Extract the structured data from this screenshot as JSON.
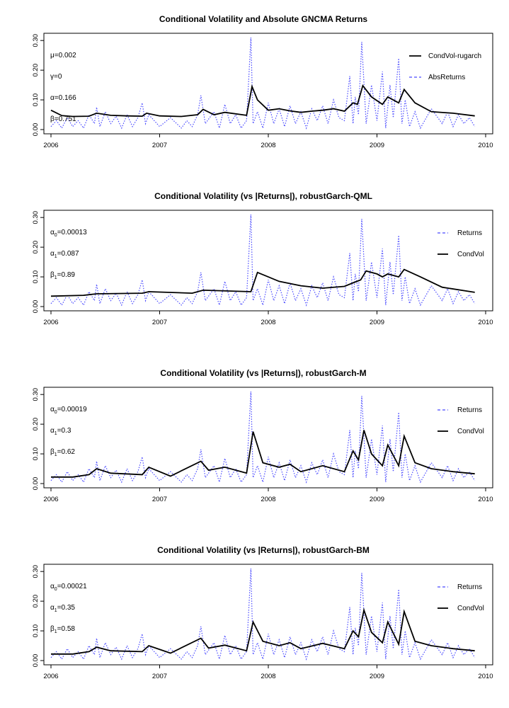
{
  "colors": {
    "returns": "#4a4aff",
    "condvol": "#000000",
    "axis": "#000000"
  },
  "chart_data": [
    {
      "type": "line",
      "title": "Conditional Volatility and Absolute GNCMA Returns",
      "xlabel": "",
      "ylabel": "",
      "xlim": [
        2006,
        2010
      ],
      "xticks": [
        2006,
        2007,
        2008,
        2009,
        2010
      ],
      "ylim": [
        0,
        0.31
      ],
      "yticks": [
        "0.00",
        "0.10",
        "0.20",
        "0.30"
      ],
      "ytick_values": [
        0.0,
        0.1,
        0.2,
        0.3
      ],
      "annotations": [
        "μ=0.002",
        "γ=0",
        "α=0.166",
        "β=0.751"
      ],
      "legend_position": "top-right",
      "legend": [
        {
          "label": "CondVol-rugarch",
          "style": "solid",
          "series": "condvol"
        },
        {
          "label": "AbsReturns",
          "style": "dashed",
          "series": "returns"
        }
      ],
      "series": [
        {
          "key": "condvol",
          "name": "CondVol-rugarch",
          "style": "solid",
          "x": [
            2006.0,
            2006.1,
            2006.2,
            2006.35,
            2006.42,
            2006.55,
            2006.7,
            2006.84,
            2006.88,
            2007.0,
            2007.2,
            2007.35,
            2007.4,
            2007.5,
            2007.6,
            2007.8,
            2007.85,
            2007.9,
            2008.0,
            2008.1,
            2008.2,
            2008.3,
            2008.4,
            2008.5,
            2008.6,
            2008.7,
            2008.78,
            2008.82,
            2008.87,
            2008.95,
            2009.05,
            2009.1,
            2009.2,
            2009.25,
            2009.35,
            2009.5,
            2009.7,
            2009.9
          ],
          "y": [
            0.065,
            0.047,
            0.044,
            0.045,
            0.055,
            0.048,
            0.046,
            0.045,
            0.055,
            0.046,
            0.044,
            0.05,
            0.068,
            0.05,
            0.058,
            0.048,
            0.145,
            0.1,
            0.065,
            0.07,
            0.063,
            0.058,
            0.062,
            0.065,
            0.07,
            0.062,
            0.09,
            0.085,
            0.148,
            0.11,
            0.085,
            0.11,
            0.09,
            0.135,
            0.09,
            0.06,
            0.055,
            0.046
          ]
        },
        {
          "key": "returns",
          "name": "AbsReturns",
          "style": "dotted",
          "x": [
            2006.0,
            2006.05,
            2006.1,
            2006.15,
            2006.2,
            2006.25,
            2006.3,
            2006.35,
            2006.4,
            2006.42,
            2006.45,
            2006.5,
            2006.55,
            2006.6,
            2006.65,
            2006.7,
            2006.75,
            2006.8,
            2006.84,
            2006.87,
            2006.9,
            2007.0,
            2007.1,
            2007.2,
            2007.25,
            2007.3,
            2007.35,
            2007.38,
            2007.42,
            2007.5,
            2007.55,
            2007.6,
            2007.65,
            2007.7,
            2007.75,
            2007.8,
            2007.84,
            2007.86,
            2007.9,
            2007.95,
            2008.0,
            2008.05,
            2008.1,
            2008.15,
            2008.2,
            2008.25,
            2008.3,
            2008.35,
            2008.4,
            2008.45,
            2008.5,
            2008.55,
            2008.6,
            2008.65,
            2008.7,
            2008.75,
            2008.78,
            2008.8,
            2008.83,
            2008.86,
            2008.9,
            2008.95,
            2009.0,
            2009.05,
            2009.08,
            2009.12,
            2009.15,
            2009.2,
            2009.23,
            2009.26,
            2009.3,
            2009.35,
            2009.4,
            2009.5,
            2009.6,
            2009.65,
            2009.7,
            2009.75,
            2009.8,
            2009.85,
            2009.9
          ],
          "y": [
            0.01,
            0.03,
            0.005,
            0.04,
            0.01,
            0.03,
            0.005,
            0.05,
            0.02,
            0.075,
            0.01,
            0.06,
            0.02,
            0.045,
            0.005,
            0.05,
            0.01,
            0.04,
            0.09,
            0.02,
            0.05,
            0.01,
            0.04,
            0.005,
            0.03,
            0.01,
            0.05,
            0.115,
            0.02,
            0.06,
            0.005,
            0.085,
            0.02,
            0.05,
            0.005,
            0.03,
            0.31,
            0.02,
            0.06,
            0.005,
            0.09,
            0.02,
            0.07,
            0.01,
            0.08,
            0.02,
            0.06,
            0.005,
            0.07,
            0.03,
            0.08,
            0.02,
            0.1,
            0.04,
            0.03,
            0.18,
            0.02,
            0.11,
            0.05,
            0.295,
            0.02,
            0.15,
            0.03,
            0.195,
            0.005,
            0.15,
            0.04,
            0.24,
            0.02,
            0.1,
            0.01,
            0.06,
            0.005,
            0.07,
            0.02,
            0.06,
            0.01,
            0.05,
            0.02,
            0.04,
            0.01
          ]
        }
      ]
    },
    {
      "type": "line",
      "title": "Conditional Volatility (vs |Returns|), robustGarch-QML",
      "xlabel": "",
      "ylabel": "",
      "xlim": [
        2006,
        2010
      ],
      "xticks": [
        2006,
        2007,
        2008,
        2009,
        2010
      ],
      "ylim": [
        0,
        0.31
      ],
      "yticks": [
        "0.00",
        "0.10",
        "0.20",
        "0.30"
      ],
      "ytick_values": [
        0.0,
        0.1,
        0.2,
        0.3
      ],
      "annotations_sub": [
        {
          "base": "α",
          "sub": "0",
          "value": "=0.00013"
        },
        {
          "base": "α",
          "sub": "1",
          "value": "=0.087"
        },
        {
          "base": "β",
          "sub": "1",
          "value": "=0.89"
        }
      ],
      "legend_position": "top-right",
      "legend": [
        {
          "label": "Returns",
          "style": "dashed",
          "series": "returns"
        },
        {
          "label": "CondVol",
          "style": "solid",
          "series": "condvol"
        }
      ],
      "series": [
        {
          "key": "condvol",
          "name": "CondVol",
          "style": "solid",
          "x": [
            2006.0,
            2006.3,
            2006.42,
            2006.84,
            2006.9,
            2007.3,
            2007.4,
            2007.84,
            2007.9,
            2008.1,
            2008.3,
            2008.5,
            2008.7,
            2008.78,
            2008.85,
            2008.9,
            2009.0,
            2009.05,
            2009.1,
            2009.2,
            2009.25,
            2009.4,
            2009.6,
            2009.9
          ],
          "y": [
            0.035,
            0.038,
            0.043,
            0.045,
            0.05,
            0.045,
            0.055,
            0.05,
            0.115,
            0.085,
            0.07,
            0.062,
            0.068,
            0.08,
            0.09,
            0.12,
            0.11,
            0.1,
            0.11,
            0.1,
            0.125,
            0.1,
            0.065,
            0.048
          ]
        },
        {
          "key": "returns",
          "name": "Returns",
          "style": "dotted",
          "same_as_panel": 0
        }
      ]
    },
    {
      "type": "line",
      "title": "Conditional Volatility (vs |Returns|), robustGarch-M",
      "xlabel": "",
      "ylabel": "",
      "xlim": [
        2006,
        2010
      ],
      "xticks": [
        2006,
        2007,
        2008,
        2009,
        2010
      ],
      "ylim": [
        0,
        0.31
      ],
      "yticks": [
        "0.00",
        "0.10",
        "0.20",
        "0.30"
      ],
      "ytick_values": [
        0.0,
        0.1,
        0.2,
        0.3
      ],
      "annotations_sub": [
        {
          "base": "α",
          "sub": "0",
          "value": "=0.00019"
        },
        {
          "base": "α",
          "sub": "1",
          "value": "=0.3"
        },
        {
          "base": "β",
          "sub": "1",
          "value": "=0.62"
        }
      ],
      "legend_position": "top-right",
      "legend": [
        {
          "label": "Returns",
          "style": "dashed",
          "series": "returns"
        },
        {
          "label": "CondVol",
          "style": "solid",
          "series": "condvol"
        }
      ],
      "series": [
        {
          "key": "condvol",
          "name": "CondVol",
          "style": "solid",
          "x": [
            2006.0,
            2006.2,
            2006.35,
            2006.42,
            2006.55,
            2006.84,
            2006.9,
            2007.1,
            2007.38,
            2007.45,
            2007.6,
            2007.8,
            2007.86,
            2007.95,
            2008.1,
            2008.2,
            2008.3,
            2008.5,
            2008.7,
            2008.78,
            2008.83,
            2008.88,
            2008.95,
            2009.05,
            2009.1,
            2009.2,
            2009.25,
            2009.35,
            2009.5,
            2009.7,
            2009.9
          ],
          "y": [
            0.022,
            0.022,
            0.03,
            0.05,
            0.035,
            0.03,
            0.055,
            0.025,
            0.075,
            0.045,
            0.055,
            0.035,
            0.175,
            0.07,
            0.055,
            0.065,
            0.04,
            0.06,
            0.04,
            0.11,
            0.08,
            0.18,
            0.1,
            0.06,
            0.13,
            0.06,
            0.16,
            0.07,
            0.05,
            0.04,
            0.033
          ]
        },
        {
          "key": "returns",
          "name": "Returns",
          "style": "dotted",
          "same_as_panel": 0
        }
      ]
    },
    {
      "type": "line",
      "title": "Conditional Volatility (vs |Returns|), robustGarch-BM",
      "xlabel": "",
      "ylabel": "",
      "xlim": [
        2006,
        2010
      ],
      "xticks": [
        2006,
        2007,
        2008,
        2009,
        2010
      ],
      "ylim": [
        0,
        0.31
      ],
      "yticks": [
        "0.00",
        "0.10",
        "0.20",
        "0.30"
      ],
      "ytick_values": [
        0.0,
        0.1,
        0.2,
        0.3
      ],
      "annotations_sub": [
        {
          "base": "α",
          "sub": "0",
          "value": "=0.00021"
        },
        {
          "base": "α",
          "sub": "1",
          "value": "=0.35"
        },
        {
          "base": "β",
          "sub": "1",
          "value": "=0.58"
        }
      ],
      "legend_position": "top-right",
      "legend": [
        {
          "label": "Returns",
          "style": "dashed",
          "series": "returns"
        },
        {
          "label": "CondVol",
          "style": "solid",
          "series": "condvol"
        }
      ],
      "series": [
        {
          "key": "condvol",
          "name": "CondVol",
          "style": "solid",
          "x": [
            2006.0,
            2006.2,
            2006.35,
            2006.42,
            2006.55,
            2006.84,
            2006.9,
            2007.1,
            2007.38,
            2007.45,
            2007.6,
            2007.8,
            2007.86,
            2007.95,
            2008.1,
            2008.2,
            2008.3,
            2008.5,
            2008.7,
            2008.78,
            2008.83,
            2008.88,
            2008.95,
            2009.05,
            2009.1,
            2009.2,
            2009.25,
            2009.35,
            2009.5,
            2009.7,
            2009.9
          ],
          "y": [
            0.022,
            0.022,
            0.03,
            0.045,
            0.033,
            0.03,
            0.05,
            0.025,
            0.075,
            0.042,
            0.052,
            0.033,
            0.13,
            0.065,
            0.05,
            0.06,
            0.04,
            0.058,
            0.04,
            0.1,
            0.08,
            0.17,
            0.095,
            0.06,
            0.13,
            0.055,
            0.165,
            0.065,
            0.05,
            0.04,
            0.033
          ]
        },
        {
          "key": "returns",
          "name": "Returns",
          "style": "dotted",
          "same_as_panel": 0
        }
      ]
    }
  ]
}
